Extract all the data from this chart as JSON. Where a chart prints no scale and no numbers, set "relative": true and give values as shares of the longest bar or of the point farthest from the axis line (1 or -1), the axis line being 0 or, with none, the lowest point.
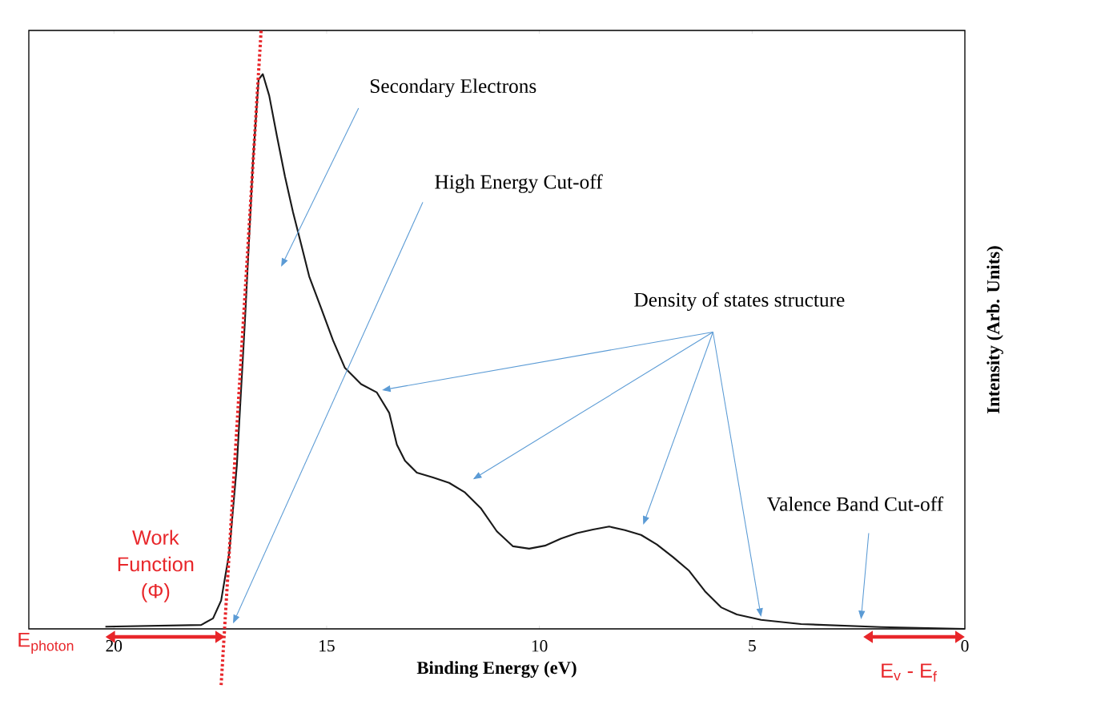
{
  "chart_data": {
    "type": "line",
    "relative": true,
    "xlabel": "Binding Energy (eV)",
    "ylabel": "Intensity (Arb. Units)",
    "xlim": [
      22,
      0
    ],
    "xticks": [
      20,
      15,
      10,
      5,
      0
    ],
    "marker": "none",
    "series": [
      {
        "color": "#1a1a1a",
        "line_style": "solid",
        "x": [
          20.2,
          17.95,
          17.67,
          17.48,
          17.29,
          17.11,
          16.92,
          16.73,
          16.6,
          16.5,
          16.35,
          16.17,
          15.98,
          15.79,
          15.6,
          15.41,
          15.13,
          14.85,
          14.57,
          14.19,
          13.82,
          13.53,
          13.35,
          13.16,
          12.88,
          12.5,
          12.12,
          11.75,
          11.37,
          11.0,
          10.62,
          10.24,
          9.87,
          9.49,
          9.12,
          8.74,
          8.36,
          7.99,
          7.61,
          7.24,
          6.86,
          6.48,
          6.11,
          5.73,
          5.36,
          4.79,
          3.85,
          1.97,
          0
        ],
        "values": [
          0.0037,
          0.0065,
          0.0176,
          0.0473,
          0.127,
          0.274,
          0.515,
          0.783,
          0.918,
          0.927,
          0.891,
          0.824,
          0.756,
          0.696,
          0.643,
          0.589,
          0.536,
          0.482,
          0.436,
          0.409,
          0.395,
          0.361,
          0.308,
          0.281,
          0.261,
          0.253,
          0.244,
          0.228,
          0.201,
          0.163,
          0.138,
          0.134,
          0.139,
          0.151,
          0.16,
          0.166,
          0.171,
          0.165,
          0.157,
          0.141,
          0.12,
          0.097,
          0.063,
          0.036,
          0.024,
          0.015,
          0.008,
          0.003,
          0
        ]
      },
      {
        "color": "#e8262a",
        "line_style": "dotted",
        "type": "line",
        "x": [
          17.48,
          16.54
        ],
        "values": [
          -0.094,
          1.0
        ]
      }
    ],
    "annotations": [
      "Secondary Electrons",
      "High Energy Cut-off",
      "Density of states structure",
      "Valence Band Cut-off",
      "Work Function (Φ)",
      "E$_{photon}$",
      "E$_{v}$ - E$_{f}$"
    ]
  }
}
